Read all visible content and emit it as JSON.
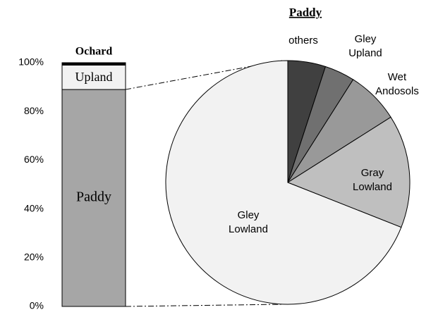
{
  "chart_data": [
    {
      "type": "bar",
      "stacked": true,
      "series": [
        {
          "name": "Paddy",
          "color": "#a6a6a6",
          "values": [
            89
          ]
        },
        {
          "name": "Upland",
          "color": "#f2f2f2",
          "values": [
            10
          ]
        },
        {
          "name": "Ochard",
          "color": "#000000",
          "values": [
            1
          ]
        }
      ],
      "ylim": [
        0,
        100
      ],
      "yticks": [
        {
          "value": 0,
          "label": "0%"
        },
        {
          "value": 20,
          "label": "20%"
        },
        {
          "value": 40,
          "label": "40%"
        },
        {
          "value": 60,
          "label": "60%"
        },
        {
          "value": 80,
          "label": "80%"
        },
        {
          "value": 100,
          "label": "100%"
        }
      ]
    },
    {
      "type": "pie",
      "title": "Paddy",
      "categories": [
        "others",
        "Gley Upland",
        "Wet Andosols",
        "Gray Lowland",
        "Gley Lowland"
      ],
      "values": [
        5,
        4,
        7,
        15,
        69
      ],
      "colors": [
        "#404040",
        "#707070",
        "#999999",
        "#bfbfbf",
        "#f2f2f2"
      ]
    }
  ]
}
